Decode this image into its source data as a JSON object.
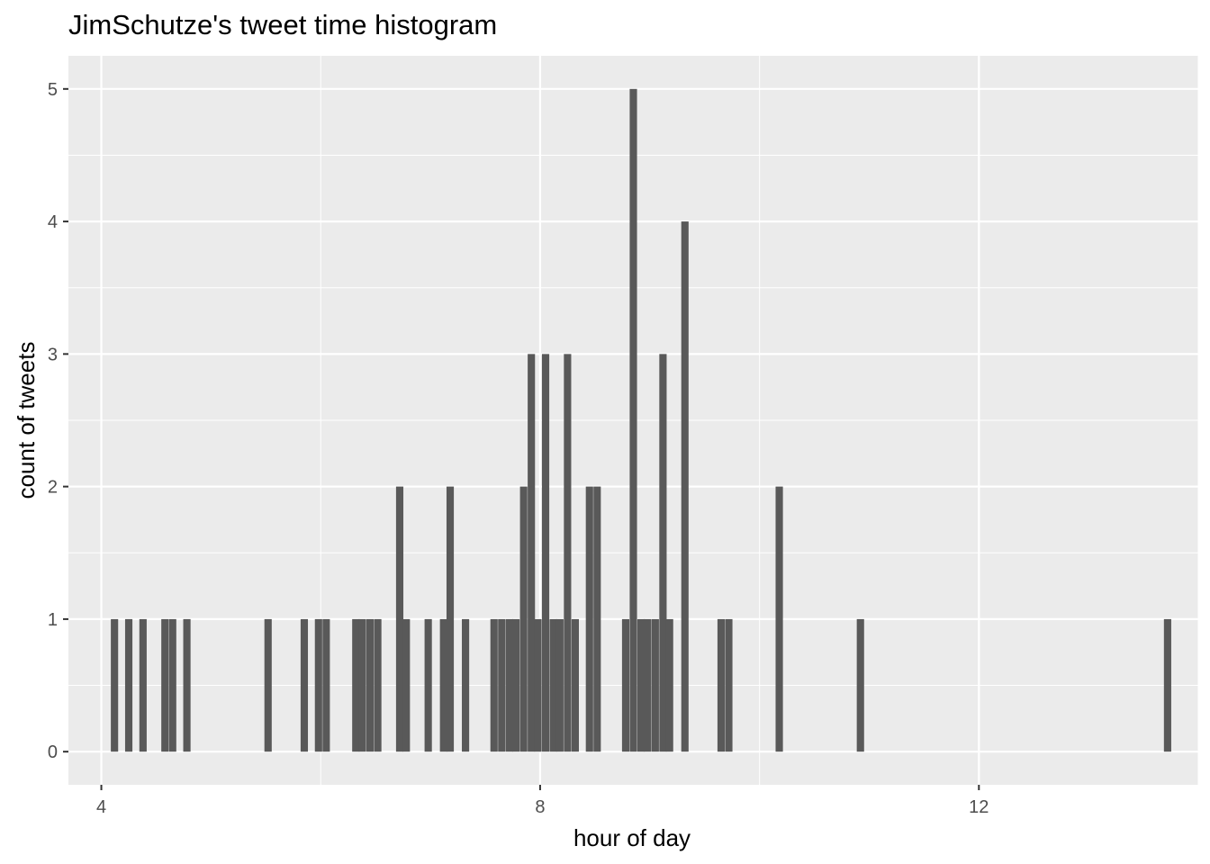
{
  "chart_data": {
    "type": "bar",
    "title": "JimSchutze's tweet time histogram",
    "xlabel": "hour of day",
    "ylabel": "count of tweets",
    "xlim": [
      3.7,
      14.0
    ],
    "ylim": [
      -0.25,
      5.25
    ],
    "x_ticks": [
      4,
      8,
      12
    ],
    "y_ticks": [
      0,
      1,
      2,
      3,
      4,
      5
    ],
    "bin_width": 0.0667,
    "grid": true,
    "legend": "none",
    "colors": {
      "panel": "#ebebeb",
      "grid": "#ffffff",
      "bar": "#595959"
    },
    "bars": [
      {
        "x": 4.12,
        "count": 1
      },
      {
        "x": 4.25,
        "count": 1
      },
      {
        "x": 4.38,
        "count": 1
      },
      {
        "x": 4.58,
        "count": 1
      },
      {
        "x": 4.65,
        "count": 1
      },
      {
        "x": 4.78,
        "count": 1
      },
      {
        "x": 5.52,
        "count": 1
      },
      {
        "x": 5.85,
        "count": 1
      },
      {
        "x": 5.98,
        "count": 1
      },
      {
        "x": 6.05,
        "count": 1
      },
      {
        "x": 6.32,
        "count": 1
      },
      {
        "x": 6.38,
        "count": 1
      },
      {
        "x": 6.45,
        "count": 1
      },
      {
        "x": 6.52,
        "count": 1
      },
      {
        "x": 6.72,
        "count": 2
      },
      {
        "x": 6.78,
        "count": 1
      },
      {
        "x": 6.98,
        "count": 1
      },
      {
        "x": 7.12,
        "count": 1
      },
      {
        "x": 7.18,
        "count": 2
      },
      {
        "x": 7.32,
        "count": 1
      },
      {
        "x": 7.58,
        "count": 1
      },
      {
        "x": 7.65,
        "count": 1
      },
      {
        "x": 7.72,
        "count": 1
      },
      {
        "x": 7.78,
        "count": 1
      },
      {
        "x": 7.85,
        "count": 2
      },
      {
        "x": 7.92,
        "count": 3
      },
      {
        "x": 7.98,
        "count": 1
      },
      {
        "x": 8.05,
        "count": 3
      },
      {
        "x": 8.12,
        "count": 1
      },
      {
        "x": 8.18,
        "count": 1
      },
      {
        "x": 8.25,
        "count": 3
      },
      {
        "x": 8.32,
        "count": 1
      },
      {
        "x": 8.45,
        "count": 2
      },
      {
        "x": 8.52,
        "count": 2
      },
      {
        "x": 8.78,
        "count": 1
      },
      {
        "x": 8.85,
        "count": 5
      },
      {
        "x": 8.92,
        "count": 1
      },
      {
        "x": 8.98,
        "count": 1
      },
      {
        "x": 9.05,
        "count": 1
      },
      {
        "x": 9.12,
        "count": 3
      },
      {
        "x": 9.18,
        "count": 1
      },
      {
        "x": 9.32,
        "count": 4
      },
      {
        "x": 9.65,
        "count": 1
      },
      {
        "x": 9.72,
        "count": 1
      },
      {
        "x": 10.18,
        "count": 2
      },
      {
        "x": 10.92,
        "count": 1
      },
      {
        "x": 13.72,
        "count": 1
      }
    ]
  }
}
